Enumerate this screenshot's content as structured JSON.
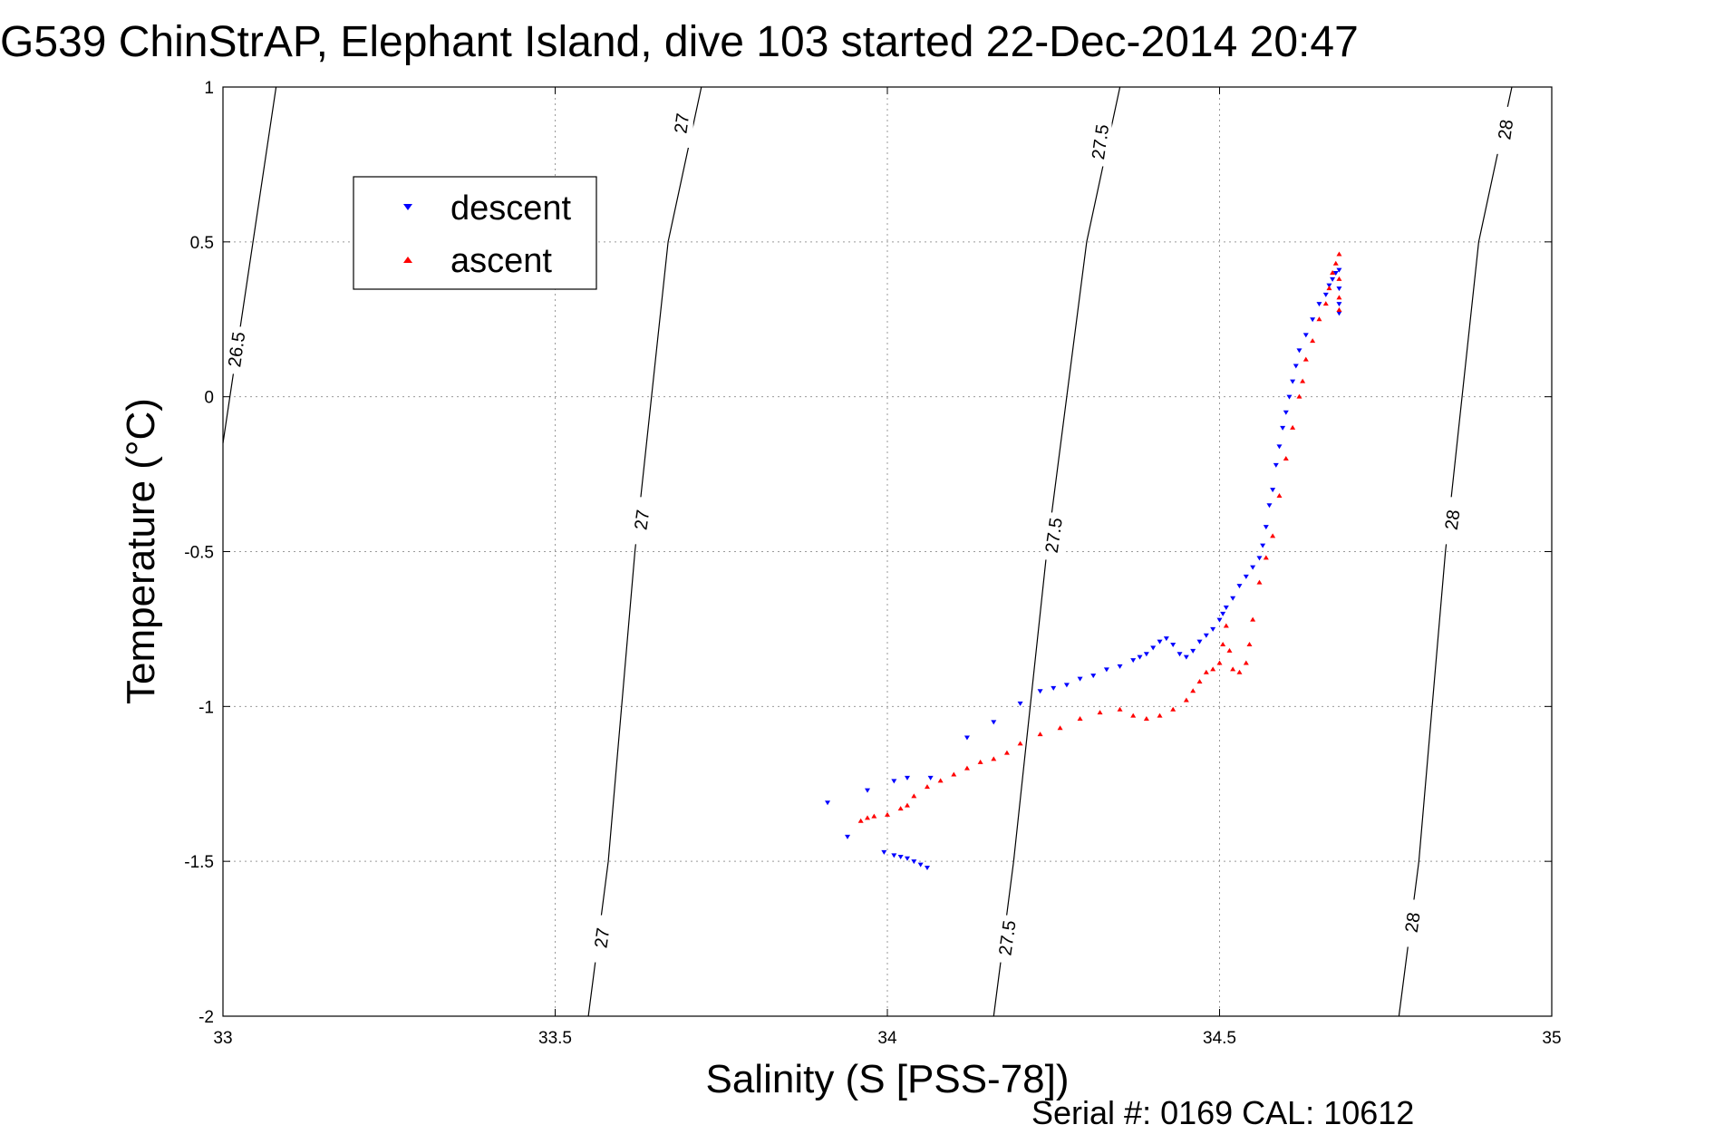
{
  "chart_data": {
    "type": "scatter",
    "title": "G539 ChinStrAP, Elephant Island, dive 103 started 22-Dec-2014 20:47",
    "xlabel": "Salinity (S [PSS-78])",
    "ylabel": "Temperature (°C)",
    "xlim": [
      33,
      35
    ],
    "ylim": [
      -2,
      1
    ],
    "xticks": [
      "33",
      "33.5",
      "34",
      "34.5",
      "35"
    ],
    "yticks": [
      "1",
      "0.5",
      "0",
      "-0.5",
      "-1",
      "-1.5",
      "-2"
    ],
    "grid": true,
    "legend_position": "top-left",
    "footer": "Serial #: 0169 CAL: 10612",
    "isopycnals": [
      {
        "label": "26.5",
        "points": [
          [
            33.0,
            -0.15
          ],
          [
            33.08,
            1.0
          ]
        ],
        "label_positions": [
          [
            33.02,
            0.15
          ]
        ]
      },
      {
        "label": "27",
        "points": [
          [
            33.55,
            -2.0
          ],
          [
            33.58,
            -1.5
          ],
          [
            33.62,
            -0.5
          ],
          [
            33.67,
            0.5
          ],
          [
            33.72,
            1.0
          ]
        ],
        "label_positions": [
          [
            33.57,
            -1.75
          ],
          [
            33.63,
            -0.4
          ],
          [
            33.69,
            0.88
          ]
        ]
      },
      {
        "label": "27.5",
        "points": [
          [
            34.16,
            -2.0
          ],
          [
            34.19,
            -1.5
          ],
          [
            34.24,
            -0.5
          ],
          [
            34.3,
            0.5
          ],
          [
            34.35,
            1.0
          ]
        ],
        "label_positions": [
          [
            34.18,
            -1.75
          ],
          [
            34.25,
            -0.45
          ],
          [
            34.32,
            0.82
          ]
        ]
      },
      {
        "label": "28",
        "points": [
          [
            34.77,
            -2.0
          ],
          [
            34.8,
            -1.5
          ],
          [
            34.84,
            -0.5
          ],
          [
            34.89,
            0.5
          ],
          [
            34.94,
            1.0
          ]
        ],
        "label_positions": [
          [
            34.79,
            -1.7
          ],
          [
            34.85,
            -0.4
          ],
          [
            34.93,
            0.86
          ]
        ]
      }
    ],
    "series": [
      {
        "name": "descent",
        "color": "#0000ff",
        "marker": "triangle-down",
        "points": [
          [
            34.06,
            -1.52
          ],
          [
            34.05,
            -1.51
          ],
          [
            34.04,
            -1.5
          ],
          [
            34.03,
            -1.49
          ],
          [
            34.02,
            -1.485
          ],
          [
            34.01,
            -1.48
          ],
          [
            33.995,
            -1.47
          ],
          [
            33.94,
            -1.42
          ],
          [
            33.91,
            -1.31
          ],
          [
            33.97,
            -1.27
          ],
          [
            34.01,
            -1.24
          ],
          [
            34.03,
            -1.23
          ],
          [
            34.065,
            -1.23
          ],
          [
            34.12,
            -1.1
          ],
          [
            34.16,
            -1.05
          ],
          [
            34.2,
            -0.99
          ],
          [
            34.23,
            -0.95
          ],
          [
            34.25,
            -0.94
          ],
          [
            34.27,
            -0.93
          ],
          [
            34.29,
            -0.91
          ],
          [
            34.31,
            -0.9
          ],
          [
            34.33,
            -0.88
          ],
          [
            34.35,
            -0.87
          ],
          [
            34.37,
            -0.85
          ],
          [
            34.38,
            -0.84
          ],
          [
            34.39,
            -0.83
          ],
          [
            34.4,
            -0.81
          ],
          [
            34.41,
            -0.79
          ],
          [
            34.42,
            -0.78
          ],
          [
            34.43,
            -0.8
          ],
          [
            34.44,
            -0.83
          ],
          [
            34.45,
            -0.84
          ],
          [
            34.46,
            -0.82
          ],
          [
            34.47,
            -0.79
          ],
          [
            34.48,
            -0.77
          ],
          [
            34.49,
            -0.75
          ],
          [
            34.5,
            -0.72
          ],
          [
            34.505,
            -0.7
          ],
          [
            34.51,
            -0.68
          ],
          [
            34.52,
            -0.65
          ],
          [
            34.53,
            -0.61
          ],
          [
            34.54,
            -0.58
          ],
          [
            34.55,
            -0.55
          ],
          [
            34.56,
            -0.52
          ],
          [
            34.565,
            -0.48
          ],
          [
            34.57,
            -0.42
          ],
          [
            34.575,
            -0.35
          ],
          [
            34.58,
            -0.3
          ],
          [
            34.585,
            -0.22
          ],
          [
            34.59,
            -0.16
          ],
          [
            34.595,
            -0.1
          ],
          [
            34.6,
            -0.05
          ],
          [
            34.605,
            0.0
          ],
          [
            34.61,
            0.05
          ],
          [
            34.615,
            0.1
          ],
          [
            34.62,
            0.15
          ],
          [
            34.63,
            0.2
          ],
          [
            34.64,
            0.25
          ],
          [
            34.65,
            0.3
          ],
          [
            34.66,
            0.33
          ],
          [
            34.665,
            0.36
          ],
          [
            34.67,
            0.38
          ],
          [
            34.675,
            0.4
          ],
          [
            34.68,
            0.41
          ],
          [
            34.68,
            0.35
          ],
          [
            34.68,
            0.3
          ],
          [
            34.68,
            0.27
          ]
        ]
      },
      {
        "name": "ascent",
        "color": "#ff0000",
        "marker": "triangle-up",
        "points": [
          [
            33.96,
            -1.37
          ],
          [
            33.97,
            -1.36
          ],
          [
            33.98,
            -1.355
          ],
          [
            34.0,
            -1.35
          ],
          [
            34.02,
            -1.33
          ],
          [
            34.03,
            -1.32
          ],
          [
            34.04,
            -1.29
          ],
          [
            34.06,
            -1.26
          ],
          [
            34.08,
            -1.24
          ],
          [
            34.1,
            -1.22
          ],
          [
            34.12,
            -1.2
          ],
          [
            34.14,
            -1.18
          ],
          [
            34.16,
            -1.17
          ],
          [
            34.18,
            -1.15
          ],
          [
            34.2,
            -1.12
          ],
          [
            34.23,
            -1.09
          ],
          [
            34.26,
            -1.07
          ],
          [
            34.29,
            -1.04
          ],
          [
            34.32,
            -1.02
          ],
          [
            34.35,
            -1.01
          ],
          [
            34.37,
            -1.03
          ],
          [
            34.39,
            -1.04
          ],
          [
            34.41,
            -1.03
          ],
          [
            34.43,
            -1.01
          ],
          [
            34.45,
            -0.98
          ],
          [
            34.46,
            -0.95
          ],
          [
            34.47,
            -0.92
          ],
          [
            34.48,
            -0.89
          ],
          [
            34.49,
            -0.88
          ],
          [
            34.5,
            -0.86
          ],
          [
            34.505,
            -0.8
          ],
          [
            34.51,
            -0.74
          ],
          [
            34.515,
            -0.82
          ],
          [
            34.52,
            -0.88
          ],
          [
            34.53,
            -0.89
          ],
          [
            34.54,
            -0.86
          ],
          [
            34.545,
            -0.8
          ],
          [
            34.55,
            -0.72
          ],
          [
            34.56,
            -0.6
          ],
          [
            34.57,
            -0.52
          ],
          [
            34.58,
            -0.45
          ],
          [
            34.59,
            -0.32
          ],
          [
            34.6,
            -0.2
          ],
          [
            34.61,
            -0.1
          ],
          [
            34.62,
            0.0
          ],
          [
            34.625,
            0.05
          ],
          [
            34.63,
            0.12
          ],
          [
            34.64,
            0.18
          ],
          [
            34.65,
            0.25
          ],
          [
            34.66,
            0.3
          ],
          [
            34.665,
            0.35
          ],
          [
            34.67,
            0.4
          ],
          [
            34.675,
            0.43
          ],
          [
            34.68,
            0.46
          ],
          [
            34.68,
            0.38
          ],
          [
            34.68,
            0.32
          ],
          [
            34.68,
            0.28
          ]
        ]
      }
    ]
  }
}
